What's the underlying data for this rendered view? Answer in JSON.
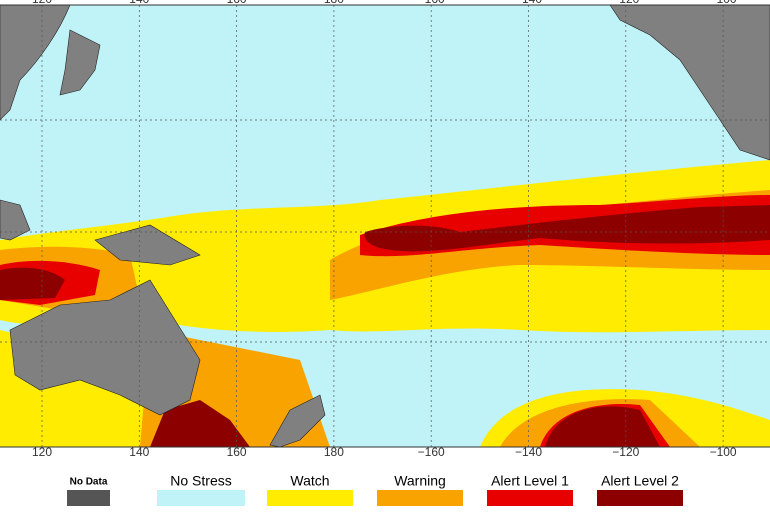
{
  "map": {
    "lon_labels": [
      "120",
      "140",
      "160",
      "180",
      "−160",
      "−140",
      "−120",
      "−100"
    ]
  },
  "legend": [
    {
      "label": "No Data",
      "color": "#555555"
    },
    {
      "label": "No Stress",
      "color": "#bff3f7"
    },
    {
      "label": "Watch",
      "color": "#ffec00"
    },
    {
      "label": "Warning",
      "color": "#f8a300"
    },
    {
      "label": "Alert Level 1",
      "color": "#e80000"
    },
    {
      "label": "Alert Level 2",
      "color": "#8c0000"
    }
  ]
}
